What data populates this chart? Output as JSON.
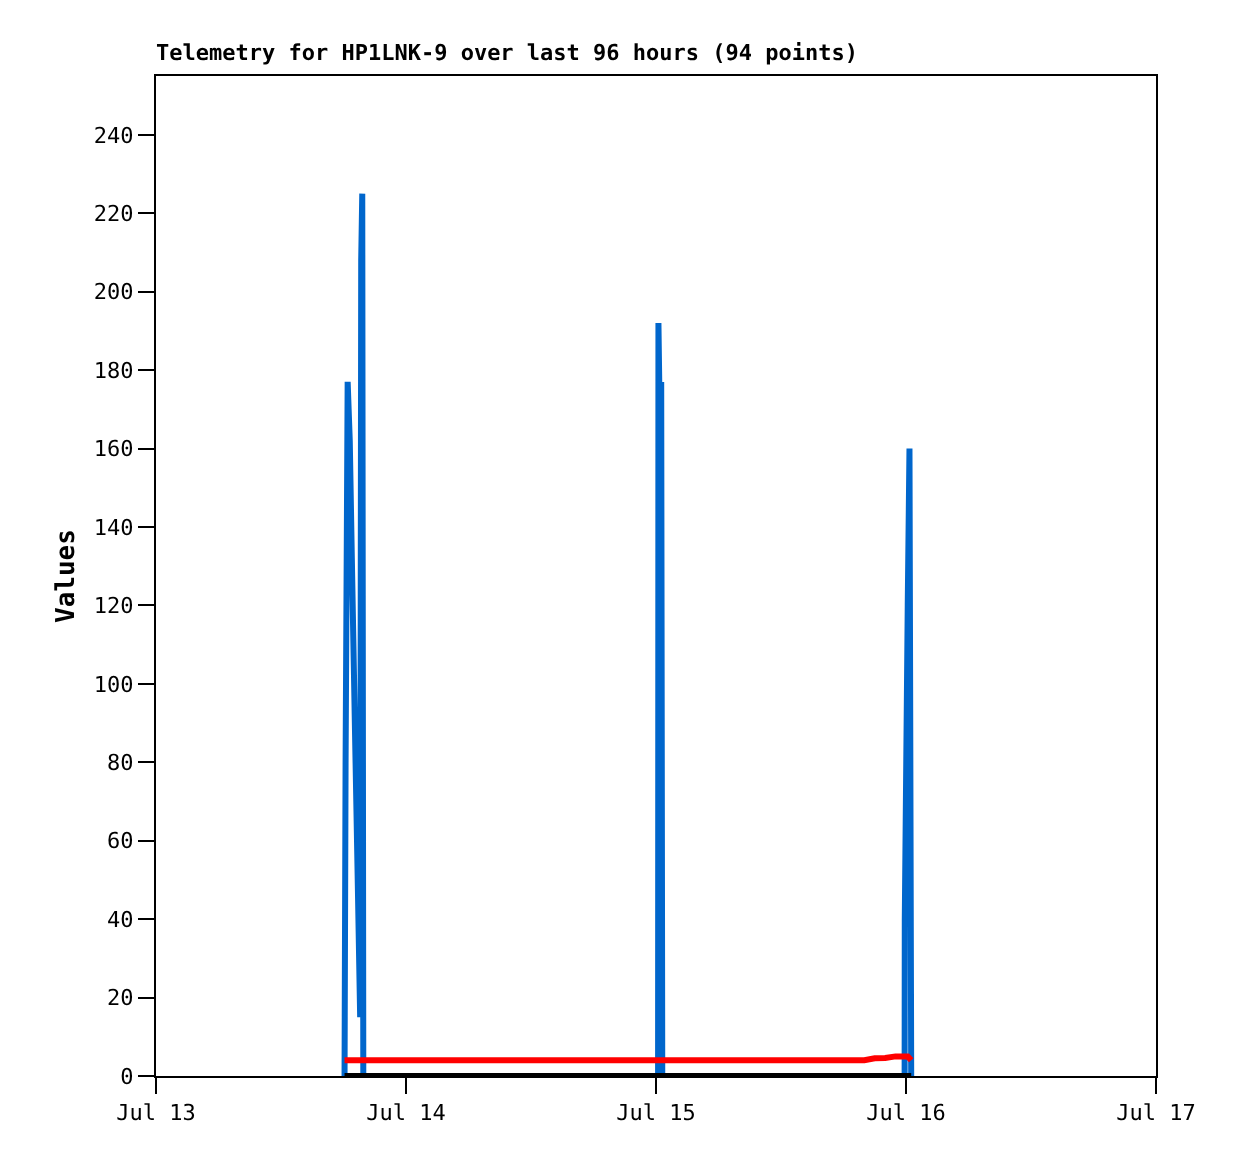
{
  "chart_data": {
    "type": "line",
    "title": "Telemetry for HP1LNK-9 over last 96 hours (94 points)",
    "ylabel": "Values",
    "xlim": [
      "--07-13",
      "--07-17"
    ],
    "xticks": [
      {
        "value": "--07-13",
        "label": "Jul 13"
      },
      {
        "value": "--07-14",
        "label": "Jul 14"
      },
      {
        "value": "--07-15",
        "label": "Jul 15"
      },
      {
        "value": "--07-16",
        "label": "Jul 16"
      },
      {
        "value": "--07-17",
        "label": "Jul 17"
      }
    ],
    "ylim": [
      0,
      255
    ],
    "yticks": [
      0,
      20,
      40,
      60,
      80,
      100,
      120,
      140,
      160,
      180,
      200,
      220,
      240
    ],
    "marker": "none",
    "line_style": "solid",
    "series": [
      {
        "color": "#0066cc",
        "x": [
          "--07-13T18:06",
          "--07-13T18:12",
          "--07-13T18:24",
          "--07-13T18:36",
          "--07-13T18:48",
          "--07-13T19:00",
          "--07-13T19:12",
          "--07-13T19:24",
          "--07-13T19:36",
          "--07-13T19:42",
          "--07-13T19:48",
          "--07-13T19:54",
          "--07-15T00:12",
          "--07-15T00:14",
          "--07-15T00:24",
          "--07-15T00:30",
          "--07-15T00:36",
          "--07-15T23:52",
          "--07-15T23:53",
          "--07-16T00:10",
          "--07-16T00:20",
          "--07-16T00:30"
        ],
        "values": [
          0,
          80,
          177,
          162,
          132,
          103,
          74,
          45,
          15,
          208,
          225,
          0,
          0,
          192,
          160,
          177,
          0,
          0,
          40,
          120,
          160,
          0
        ]
      },
      {
        "color": "#ff0000",
        "x": [
          "--07-13T18:06",
          "--07-15T20:00",
          "--07-15T21:00",
          "--07-15T22:00",
          "--07-15T23:00",
          "--07-16T00:10",
          "--07-16T00:30"
        ],
        "values": [
          4,
          4,
          4.5,
          4.6,
          5,
          5,
          4
        ]
      },
      {
        "color": "#000000",
        "x": [
          "--07-13T18:06",
          "--07-16T00:30"
        ],
        "values": [
          0,
          0
        ]
      }
    ]
  }
}
